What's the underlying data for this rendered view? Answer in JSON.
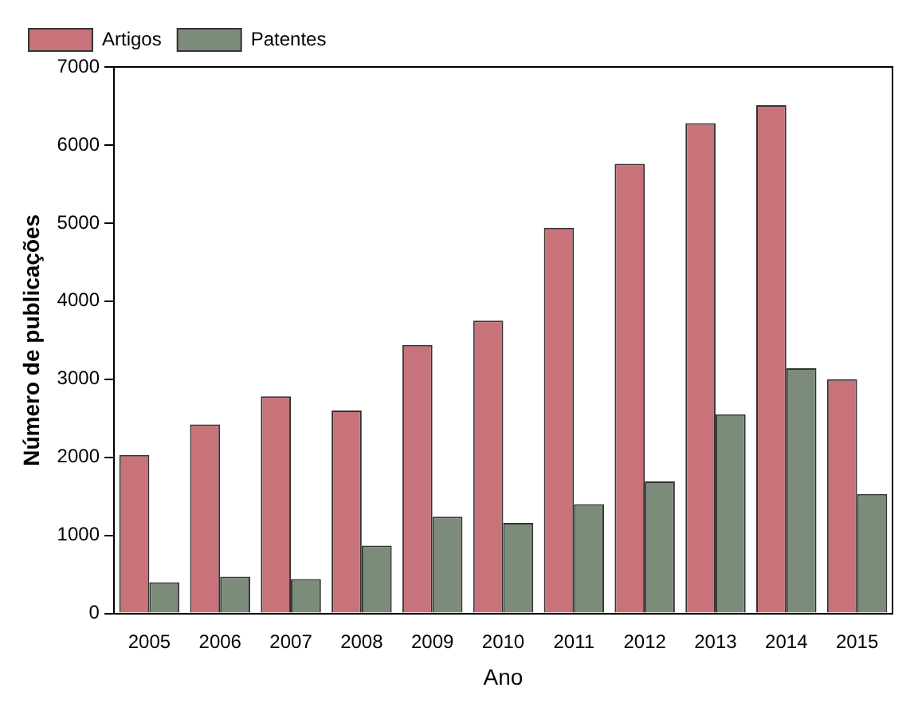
{
  "chart_data": {
    "type": "bar",
    "xlabel": "Ano",
    "ylabel": "Número de publicações",
    "categories": [
      "2005",
      "2006",
      "2007",
      "2008",
      "2009",
      "2010",
      "2011",
      "2012",
      "2013",
      "2014",
      "2015"
    ],
    "series": [
      {
        "name": "Artigos",
        "color": "#c8727a",
        "values": [
          2030,
          2420,
          2780,
          2600,
          3440,
          3750,
          4940,
          5760,
          6280,
          6510,
          3000
        ]
      },
      {
        "name": "Patentes",
        "color": "#7c8c7a",
        "values": [
          400,
          470,
          440,
          870,
          1240,
          1160,
          1400,
          1690,
          2550,
          3140,
          1530
        ]
      }
    ],
    "ylim": [
      0,
      7000
    ],
    "yticks": [
      0,
      1000,
      2000,
      3000,
      4000,
      5000,
      6000,
      7000
    ],
    "grid": false,
    "legend": "top left"
  }
}
